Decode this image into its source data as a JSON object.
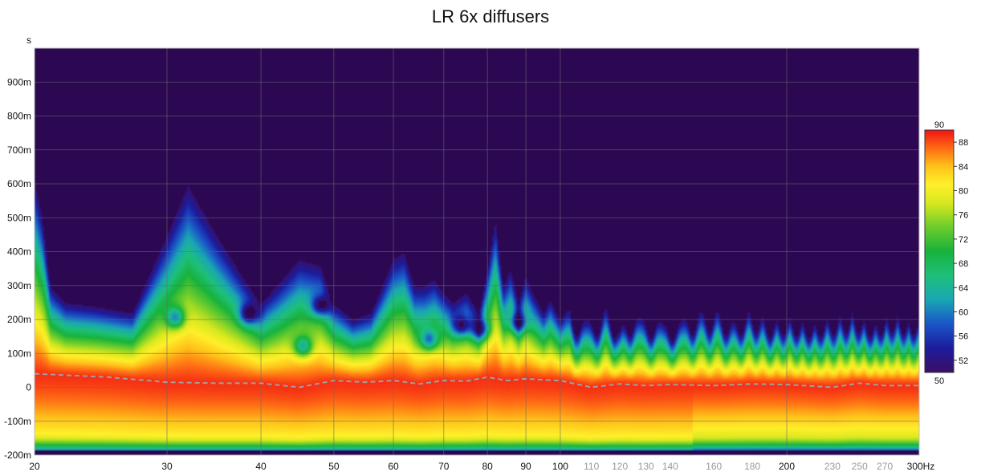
{
  "chart_data": {
    "type": "heatmap",
    "title": "LR 6x diffusers",
    "y_unit_label": "s",
    "x_unit_label": "Hz",
    "x_scale": "log",
    "xlim": [
      20,
      300
    ],
    "ylim": [
      -0.2,
      1.0
    ],
    "grid": true,
    "x_ticks": [
      {
        "value": 20,
        "label": "20",
        "minor": false
      },
      {
        "value": 30,
        "label": "30",
        "minor": false
      },
      {
        "value": 40,
        "label": "40",
        "minor": false
      },
      {
        "value": 50,
        "label": "50",
        "minor": false
      },
      {
        "value": 60,
        "label": "60",
        "minor": false
      },
      {
        "value": 70,
        "label": "70",
        "minor": false
      },
      {
        "value": 80,
        "label": "80",
        "minor": false
      },
      {
        "value": 90,
        "label": "90",
        "minor": false
      },
      {
        "value": 100,
        "label": "100",
        "minor": false
      },
      {
        "value": 110,
        "label": "110",
        "minor": true
      },
      {
        "value": 120,
        "label": "120",
        "minor": true
      },
      {
        "value": 130,
        "label": "130",
        "minor": true
      },
      {
        "value": 140,
        "label": "140",
        "minor": true
      },
      {
        "value": 160,
        "label": "160",
        "minor": true
      },
      {
        "value": 180,
        "label": "180",
        "minor": true
      },
      {
        "value": 200,
        "label": "200",
        "minor": false
      },
      {
        "value": 230,
        "label": "230",
        "minor": true
      },
      {
        "value": 250,
        "label": "250",
        "minor": true
      },
      {
        "value": 270,
        "label": "270",
        "minor": true
      },
      {
        "value": 300,
        "label": "300",
        "minor": false
      }
    ],
    "y_ticks": [
      {
        "value": 0.9,
        "label": "900m"
      },
      {
        "value": 0.8,
        "label": "800m"
      },
      {
        "value": 0.7,
        "label": "700m"
      },
      {
        "value": 0.6,
        "label": "600m"
      },
      {
        "value": 0.5,
        "label": "500m"
      },
      {
        "value": 0.4,
        "label": "400m"
      },
      {
        "value": 0.3,
        "label": "300m"
      },
      {
        "value": 0.2,
        "label": "200m"
      },
      {
        "value": 0.1,
        "label": "100m"
      },
      {
        "value": 0.0,
        "label": "0"
      },
      {
        "value": -0.1,
        "label": "-100m"
      },
      {
        "value": -0.2,
        "label": "-200m"
      }
    ],
    "colorbar": {
      "min": 50,
      "max": 90,
      "min_label": "50",
      "max_label": "90",
      "ticks": [
        "88",
        "84",
        "80",
        "76",
        "72",
        "68",
        "64",
        "60",
        "56",
        "52"
      ],
      "tick_values": [
        88,
        84,
        80,
        76,
        72,
        68,
        64,
        60,
        56,
        52
      ],
      "stops": [
        {
          "v": 50,
          "color": "#3a0f66"
        },
        {
          "v": 54,
          "color": "#1c1c9c"
        },
        {
          "v": 58,
          "color": "#1a55c8"
        },
        {
          "v": 62,
          "color": "#1aa6b4"
        },
        {
          "v": 66,
          "color": "#1ec07a"
        },
        {
          "v": 70,
          "color": "#18b23c"
        },
        {
          "v": 74,
          "color": "#6ccd2c"
        },
        {
          "v": 78,
          "color": "#d8e81e"
        },
        {
          "v": 81,
          "color": "#fff02a"
        },
        {
          "v": 84,
          "color": "#ffc219"
        },
        {
          "v": 87,
          "color": "#ff6a14"
        },
        {
          "v": 90,
          "color": "#f01414"
        }
      ]
    },
    "background_color": "#2c0752",
    "peak_time_curve": {
      "color": "#a0a0a0",
      "style": "dashed",
      "x": [
        20,
        25,
        30,
        35,
        40,
        45,
        50,
        55,
        60,
        65,
        70,
        75,
        80,
        85,
        90,
        95,
        100,
        110,
        120,
        130,
        140,
        160,
        180,
        200,
        230,
        250,
        270,
        300
      ],
      "y": [
        0.04,
        0.03,
        0.015,
        0.012,
        0.012,
        0.0,
        0.02,
        0.015,
        0.02,
        0.01,
        0.02,
        0.018,
        0.03,
        0.02,
        0.025,
        0.022,
        0.02,
        0.0,
        0.01,
        0.005,
        0.008,
        0.005,
        0.01,
        0.008,
        0.0,
        0.012,
        0.005,
        0.005
      ]
    },
    "envelope": {
      "x": [
        20,
        20.5,
        21,
        22,
        24,
        27,
        30,
        32,
        35,
        38,
        40,
        42,
        45,
        48,
        50,
        53,
        56,
        58,
        60,
        62,
        64,
        66,
        68,
        70,
        72,
        75,
        78,
        80,
        82,
        84,
        86,
        88,
        90,
        92,
        95,
        97,
        100,
        103,
        106,
        110,
        115,
        120,
        125,
        130,
        135,
        140,
        150,
        160,
        170,
        180,
        190,
        200,
        215,
        230,
        245,
        260,
        275,
        290,
        300
      ],
      "y": [
        0.62,
        0.5,
        0.3,
        0.25,
        0.24,
        0.22,
        0.45,
        0.6,
        0.45,
        0.32,
        0.25,
        0.3,
        0.38,
        0.36,
        0.25,
        0.2,
        0.22,
        0.3,
        0.38,
        0.4,
        0.3,
        0.3,
        0.32,
        0.28,
        0.25,
        0.28,
        0.22,
        0.35,
        0.5,
        0.3,
        0.35,
        0.25,
        0.33,
        0.28,
        0.22,
        0.26,
        0.2,
        0.24,
        0.2,
        0.2,
        0.24,
        0.18,
        0.22,
        0.2,
        0.2,
        0.18,
        0.22,
        0.24,
        0.2,
        0.24,
        0.2,
        0.22,
        0.2,
        0.22,
        0.24,
        0.2,
        0.24,
        0.22,
        0.22
      ]
    },
    "notches": [
      {
        "x": 30.8,
        "t": 0.205,
        "type": "hole"
      },
      {
        "x": 38.5,
        "t": 0.215,
        "type": "hole"
      },
      {
        "x": 45.5,
        "t": 0.12,
        "type": "hole"
      },
      {
        "x": 48.0,
        "t": 0.24,
        "type": "hole"
      },
      {
        "x": 67.0,
        "t": 0.14,
        "type": "hole"
      },
      {
        "x": 74.0,
        "t": 0.18,
        "type": "hole"
      },
      {
        "x": 78.5,
        "t": 0.17,
        "type": "hole"
      },
      {
        "x": 88.0,
        "t": 0.19,
        "type": "hole"
      },
      {
        "x": 105,
        "t": 0.2,
        "type": "spike"
      },
      {
        "x": 112,
        "t": 0.2,
        "type": "spike"
      },
      {
        "x": 118,
        "t": 0.21,
        "type": "spike"
      },
      {
        "x": 124,
        "t": 0.2,
        "type": "spike"
      },
      {
        "x": 132,
        "t": 0.2,
        "type": "spike"
      },
      {
        "x": 141,
        "t": 0.2,
        "type": "spike"
      },
      {
        "x": 150,
        "t": 0.2,
        "type": "spike"
      },
      {
        "x": 158,
        "t": 0.2,
        "type": "spike"
      },
      {
        "x": 166,
        "t": 0.2,
        "type": "spike"
      },
      {
        "x": 174,
        "t": 0.21,
        "type": "spike"
      },
      {
        "x": 182,
        "t": 0.2,
        "type": "spike"
      },
      {
        "x": 190,
        "t": 0.2,
        "type": "spike"
      },
      {
        "x": 198,
        "t": 0.2,
        "type": "spike"
      },
      {
        "x": 206,
        "t": 0.2,
        "type": "spike"
      },
      {
        "x": 214,
        "t": 0.2,
        "type": "spike"
      },
      {
        "x": 222,
        "t": 0.2,
        "type": "spike"
      },
      {
        "x": 231,
        "t": 0.2,
        "type": "spike"
      },
      {
        "x": 240,
        "t": 0.2,
        "type": "spike"
      },
      {
        "x": 249,
        "t": 0.2,
        "type": "spike"
      },
      {
        "x": 258,
        "t": 0.2,
        "type": "spike"
      },
      {
        "x": 267,
        "t": 0.2,
        "type": "spike"
      },
      {
        "x": 276,
        "t": 0.2,
        "type": "spike"
      },
      {
        "x": 286,
        "t": 0.2,
        "type": "spike"
      },
      {
        "x": 295,
        "t": 0.2,
        "type": "spike"
      }
    ]
  }
}
